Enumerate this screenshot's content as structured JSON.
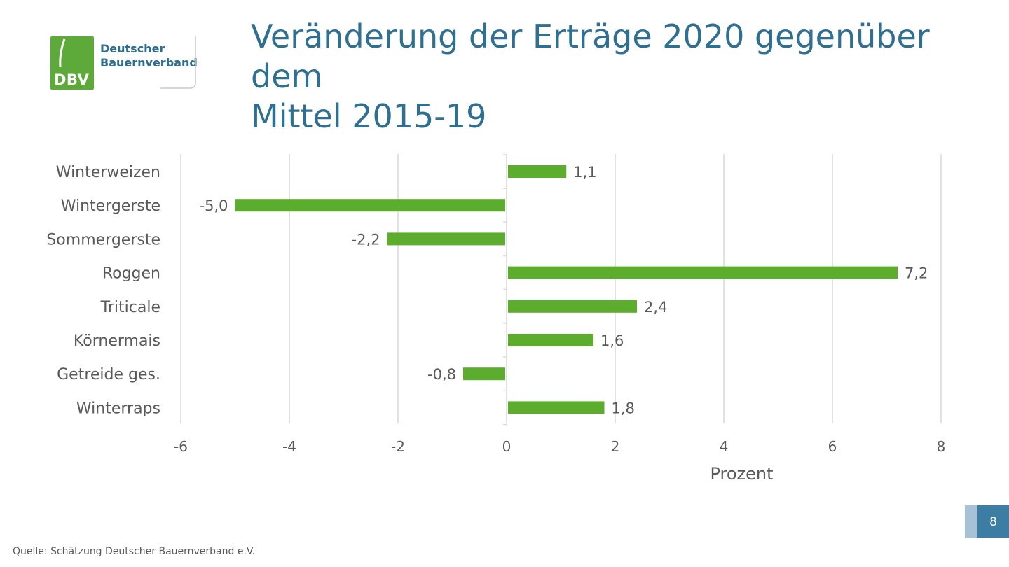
{
  "logo": {
    "letters": "DBV",
    "name_line1": "Deutscher",
    "name_line2": "Bauernverband"
  },
  "title": {
    "line1": "Veränderung der Erträge 2020 gegenüber dem",
    "line2": "Mittel 2015-19"
  },
  "chart_data": {
    "type": "bar",
    "orientation": "horizontal",
    "categories": [
      "Winterweizen",
      "Wintergerste",
      "Sommergerste",
      "Roggen",
      "Triticale",
      "Körnermais",
      "Getreide ges.",
      "Winterraps"
    ],
    "values": [
      1.1,
      -5.0,
      -2.2,
      7.2,
      2.4,
      1.6,
      -0.8,
      1.8
    ],
    "value_labels": [
      "1,1",
      "-5,0",
      "-2,2",
      "7,2",
      "2,4",
      "1,6",
      "-0,8",
      "1,8"
    ],
    "xlabel": "Prozent",
    "ylabel": "",
    "xlim": [
      -6,
      8
    ],
    "xticks": [
      -6,
      -4,
      -2,
      0,
      2,
      4,
      6,
      8
    ],
    "xtick_labels": [
      "-6",
      "-4",
      "-2",
      "0",
      "2",
      "4",
      "6",
      "8"
    ],
    "grid": "vertical",
    "legend": "none",
    "bar_color": "#5cad2e"
  },
  "colors": {
    "title": "#2f6f91",
    "brand_green": "#5daa3a",
    "grid": "#d9d9d9",
    "label_text": "#595959",
    "page_box": "#3c7ea3"
  },
  "page_number": "8",
  "source": "Quelle: Schätzung Deutscher Bauernverband e.V."
}
